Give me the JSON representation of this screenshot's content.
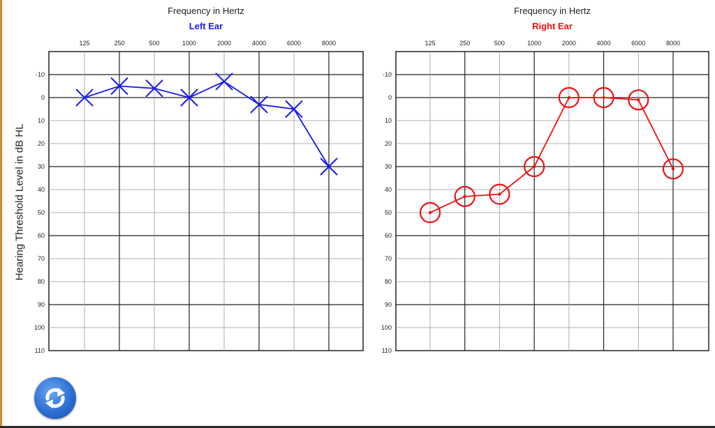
{
  "y_axis_label": "Hearing Threshold Level in dB HL",
  "colors": {
    "left": "#1a1aee",
    "right": "#ee1111",
    "grid": "#999999",
    "grid_major": "#222222"
  },
  "refresh_icon": "refresh-icon",
  "chart_data": [
    {
      "type": "line",
      "marker": "x",
      "title": "Frequency in Hertz",
      "subtitle": "Left Ear",
      "color": "#1a1aee",
      "categories": [
        "125",
        "250",
        "500",
        "1000",
        "2000",
        "4000",
        "6000",
        "8000"
      ],
      "y_ticks": [
        "-10",
        "0",
        "10",
        "20",
        "30",
        "40",
        "50",
        "60",
        "70",
        "80",
        "90",
        "100",
        "110"
      ],
      "ylim": [
        -20,
        110
      ],
      "y_inverted": true,
      "series": [
        {
          "values": [
            0,
            -5,
            -4,
            0,
            -7,
            3,
            5,
            30
          ]
        }
      ]
    },
    {
      "type": "line",
      "marker": "circle",
      "title": "Frequency in Hertz",
      "subtitle": "Right Ear",
      "color": "#ee1111",
      "categories": [
        "125",
        "250",
        "500",
        "1000",
        "2000",
        "4000",
        "6000",
        "8000"
      ],
      "y_ticks": [
        "-10",
        "0",
        "10",
        "20",
        "30",
        "40",
        "50",
        "60",
        "70",
        "80",
        "90",
        "100",
        "110"
      ],
      "ylim": [
        -20,
        110
      ],
      "y_inverted": true,
      "series": [
        {
          "values": [
            50,
            43,
            42,
            30,
            0,
            0,
            1,
            31
          ]
        }
      ]
    }
  ]
}
